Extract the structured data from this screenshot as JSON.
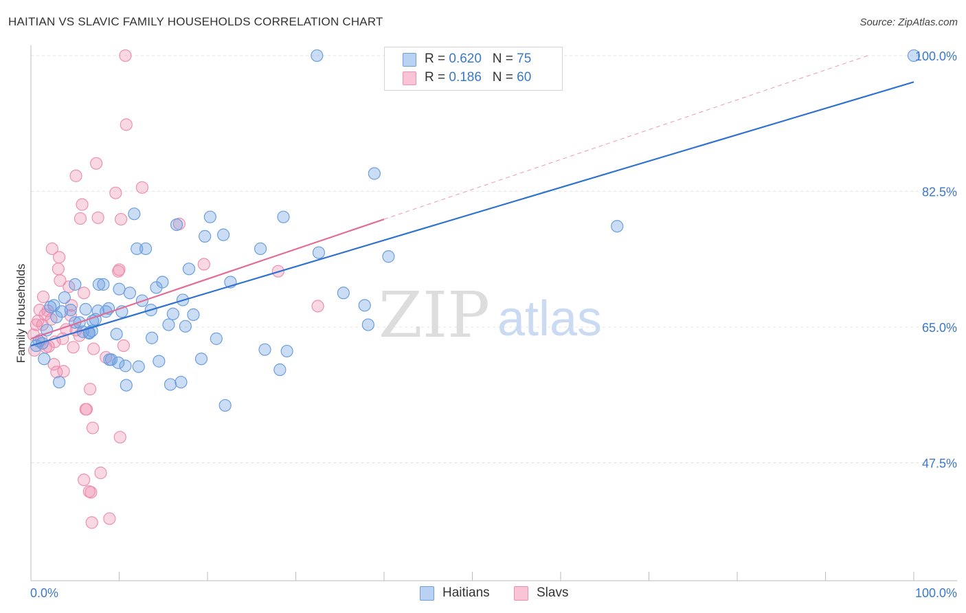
{
  "title": "HAITIAN VS SLAVIC FAMILY HOUSEHOLDS CORRELATION CHART",
  "source": "Source: ZipAtlas.com",
  "watermark": {
    "zip": "ZIP",
    "atlas": "atlas"
  },
  "legend": {
    "haitians": {
      "r_label": "R = ",
      "r_value": "0.620",
      "n_label": "N = ",
      "n_value": "75"
    },
    "slavs": {
      "r_label": "R = ",
      "r_value": "0.186",
      "n_label": "N = ",
      "n_value": "60"
    }
  },
  "chart_data": {
    "type": "scatter",
    "title": "HAITIAN VS SLAVIC FAMILY HOUSEHOLDS CORRELATION CHART",
    "ylabel": "Family Households",
    "xlabel": "",
    "xlim": [
      0,
      100
    ],
    "ylim": [
      32.3,
      101.5
    ],
    "x_tick_labels": [
      "0.0%",
      "100.0%"
    ],
    "y_ticks": [
      {
        "value": 100.0,
        "label": "100.0%"
      },
      {
        "value": 82.5,
        "label": "82.5%"
      },
      {
        "value": 65.0,
        "label": "65.0%"
      },
      {
        "value": 47.5,
        "label": "47.5%"
      }
    ],
    "colors": {
      "haitians": "#6a9ee0",
      "slavs": "#ee8fb0",
      "haitians_line": "#2f72d0",
      "slavs_line": "#e46b95"
    },
    "series": [
      {
        "name": "Haitians",
        "points": [
          [
            0.6,
            62.6
          ],
          [
            0.9,
            63.2
          ],
          [
            1.3,
            62.9
          ],
          [
            1.5,
            60.9
          ],
          [
            1.8,
            64.6
          ],
          [
            2.2,
            67.6
          ],
          [
            2.6,
            67.8
          ],
          [
            2.9,
            66.3
          ],
          [
            3.2,
            57.9
          ],
          [
            3.5,
            67.0
          ],
          [
            3.8,
            68.8
          ],
          [
            4.5,
            67.2
          ],
          [
            5.0,
            65.6
          ],
          [
            5.0,
            70.5
          ],
          [
            5.5,
            65.6
          ],
          [
            5.9,
            64.4
          ],
          [
            6.2,
            67.3
          ],
          [
            6.6,
            64.2
          ],
          [
            6.6,
            64.3
          ],
          [
            6.9,
            64.5
          ],
          [
            7.0,
            65.8
          ],
          [
            7.3,
            66.0
          ],
          [
            7.6,
            67.1
          ],
          [
            7.7,
            70.5
          ],
          [
            8.2,
            70.5
          ],
          [
            8.5,
            67.0
          ],
          [
            8.8,
            67.4
          ],
          [
            8.9,
            60.8
          ],
          [
            9.1,
            60.8
          ],
          [
            9.7,
            64.1
          ],
          [
            9.9,
            60.4
          ],
          [
            10.0,
            69.9
          ],
          [
            10.3,
            67.0
          ],
          [
            10.7,
            60.0
          ],
          [
            10.8,
            57.5
          ],
          [
            11.2,
            69.4
          ],
          [
            11.7,
            79.6
          ],
          [
            12.0,
            75.1
          ],
          [
            12.2,
            59.9
          ],
          [
            12.6,
            68.4
          ],
          [
            13.0,
            75.1
          ],
          [
            13.6,
            67.2
          ],
          [
            13.7,
            63.6
          ],
          [
            14.2,
            70.1
          ],
          [
            14.5,
            60.6
          ],
          [
            14.9,
            70.8
          ],
          [
            15.6,
            65.3
          ],
          [
            15.8,
            57.6
          ],
          [
            16.1,
            66.7
          ],
          [
            16.5,
            78.2
          ],
          [
            17.0,
            57.9
          ],
          [
            17.2,
            68.5
          ],
          [
            17.5,
            65.1
          ],
          [
            17.9,
            72.5
          ],
          [
            18.4,
            66.6
          ],
          [
            19.3,
            60.9
          ],
          [
            19.7,
            76.7
          ],
          [
            20.3,
            79.2
          ],
          [
            21.0,
            63.5
          ],
          [
            21.8,
            76.9
          ],
          [
            22.0,
            54.9
          ],
          [
            22.6,
            70.8
          ],
          [
            26.0,
            75.1
          ],
          [
            26.5,
            62.1
          ],
          [
            28.2,
            59.5
          ],
          [
            28.6,
            79.2
          ],
          [
            29.0,
            61.9
          ],
          [
            32.4,
            100.0
          ],
          [
            32.6,
            74.6
          ],
          [
            35.4,
            69.4
          ],
          [
            37.8,
            67.8
          ],
          [
            38.2,
            65.3
          ],
          [
            38.9,
            84.8
          ],
          [
            40.5,
            74.1
          ],
          [
            66.4,
            78.0
          ],
          [
            100.0,
            100.0
          ]
        ]
      },
      {
        "name": "Slavs",
        "points": [
          [
            0.3,
            64.0
          ],
          [
            0.6,
            65.3
          ],
          [
            0.8,
            65.8
          ],
          [
            1.0,
            67.2
          ],
          [
            1.2,
            63.4
          ],
          [
            1.3,
            65.3
          ],
          [
            1.4,
            68.9
          ],
          [
            1.6,
            66.6
          ],
          [
            1.7,
            62.4
          ],
          [
            1.9,
            67.1
          ],
          [
            2.0,
            62.5
          ],
          [
            2.3,
            66.0
          ],
          [
            2.4,
            75.1
          ],
          [
            2.6,
            60.2
          ],
          [
            2.7,
            63.1
          ],
          [
            2.9,
            59.2
          ],
          [
            3.1,
            72.5
          ],
          [
            3.2,
            74.0
          ],
          [
            3.3,
            71.0
          ],
          [
            3.6,
            63.5
          ],
          [
            3.7,
            59.3
          ],
          [
            4.0,
            64.7
          ],
          [
            4.3,
            70.2
          ],
          [
            4.5,
            66.5
          ],
          [
            4.6,
            67.8
          ],
          [
            4.8,
            62.4
          ],
          [
            5.1,
            64.6
          ],
          [
            5.1,
            84.5
          ],
          [
            5.5,
            63.9
          ],
          [
            5.6,
            79.0
          ],
          [
            5.8,
            80.8
          ],
          [
            6.0,
            69.4
          ],
          [
            6.0,
            45.3
          ],
          [
            6.2,
            54.4
          ],
          [
            6.3,
            54.4
          ],
          [
            6.6,
            43.8
          ],
          [
            6.7,
            57.0
          ],
          [
            6.8,
            43.7
          ],
          [
            6.9,
            39.8
          ],
          [
            7.0,
            52.0
          ],
          [
            7.1,
            62.2
          ],
          [
            7.4,
            86.1
          ],
          [
            7.6,
            79.1
          ],
          [
            7.9,
            46.2
          ],
          [
            8.5,
            61.1
          ],
          [
            8.9,
            40.3
          ],
          [
            9.6,
            82.3
          ],
          [
            9.9,
            72.2
          ],
          [
            10.0,
            72.4
          ],
          [
            10.1,
            50.8
          ],
          [
            10.2,
            78.9
          ],
          [
            10.5,
            62.6
          ],
          [
            10.7,
            100.0
          ],
          [
            10.8,
            91.1
          ],
          [
            12.6,
            83.0
          ],
          [
            16.8,
            78.3
          ],
          [
            19.6,
            73.1
          ],
          [
            28.0,
            72.2
          ],
          [
            32.5,
            67.7
          ],
          [
            0.4,
            62.0
          ]
        ]
      }
    ],
    "trend_lines": [
      {
        "series": "Haitians",
        "x": [
          0,
          100
        ],
        "y": [
          62.6,
          96.6
        ]
      },
      {
        "series": "Slavs",
        "x": [
          0,
          40
        ],
        "y": [
          63.5,
          78.9
        ],
        "dashed_extension_to": [
          95,
          100
        ]
      }
    ]
  },
  "bottom_legend": [
    "Haitians",
    "Slavs"
  ]
}
